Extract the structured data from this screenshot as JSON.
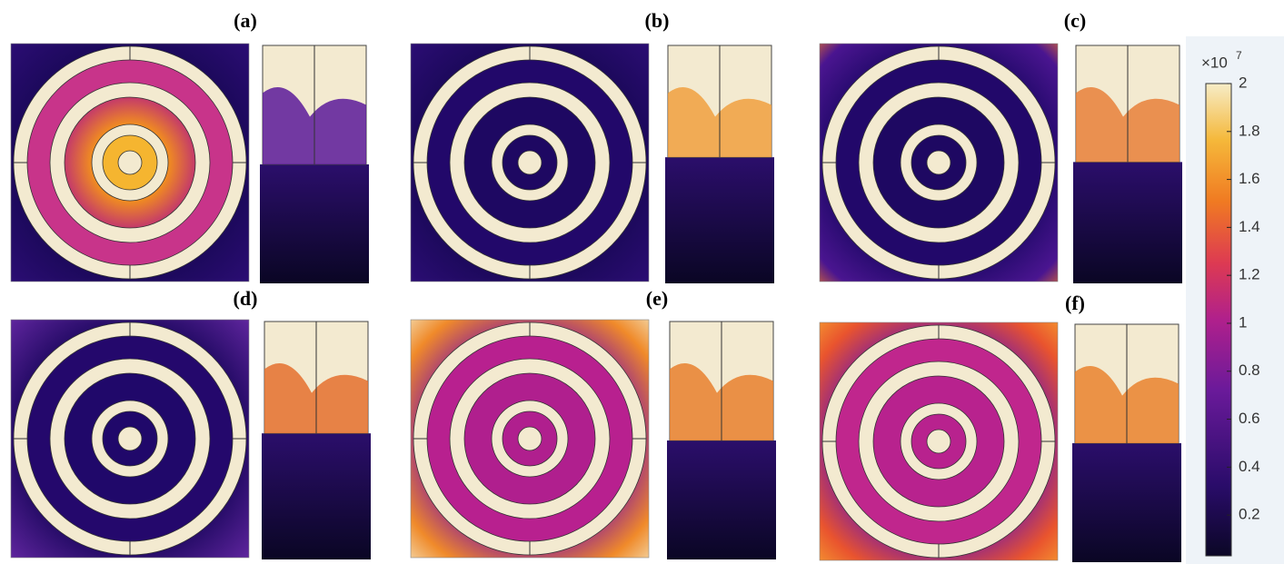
{
  "figure": {
    "panels": [
      {
        "label": "(a)"
      },
      {
        "label": "(b)"
      },
      {
        "label": "(c)"
      },
      {
        "label": "(d)"
      },
      {
        "label": "(e)"
      },
      {
        "label": "(f)"
      }
    ],
    "colorbar": {
      "multiplier": "×10",
      "exponent": "7",
      "lim": [
        0.03,
        2
      ],
      "ticks": [
        0.2,
        0.4,
        0.6,
        0.8,
        1,
        1.2,
        1.4,
        1.6,
        1.8,
        2
      ]
    }
  }
}
